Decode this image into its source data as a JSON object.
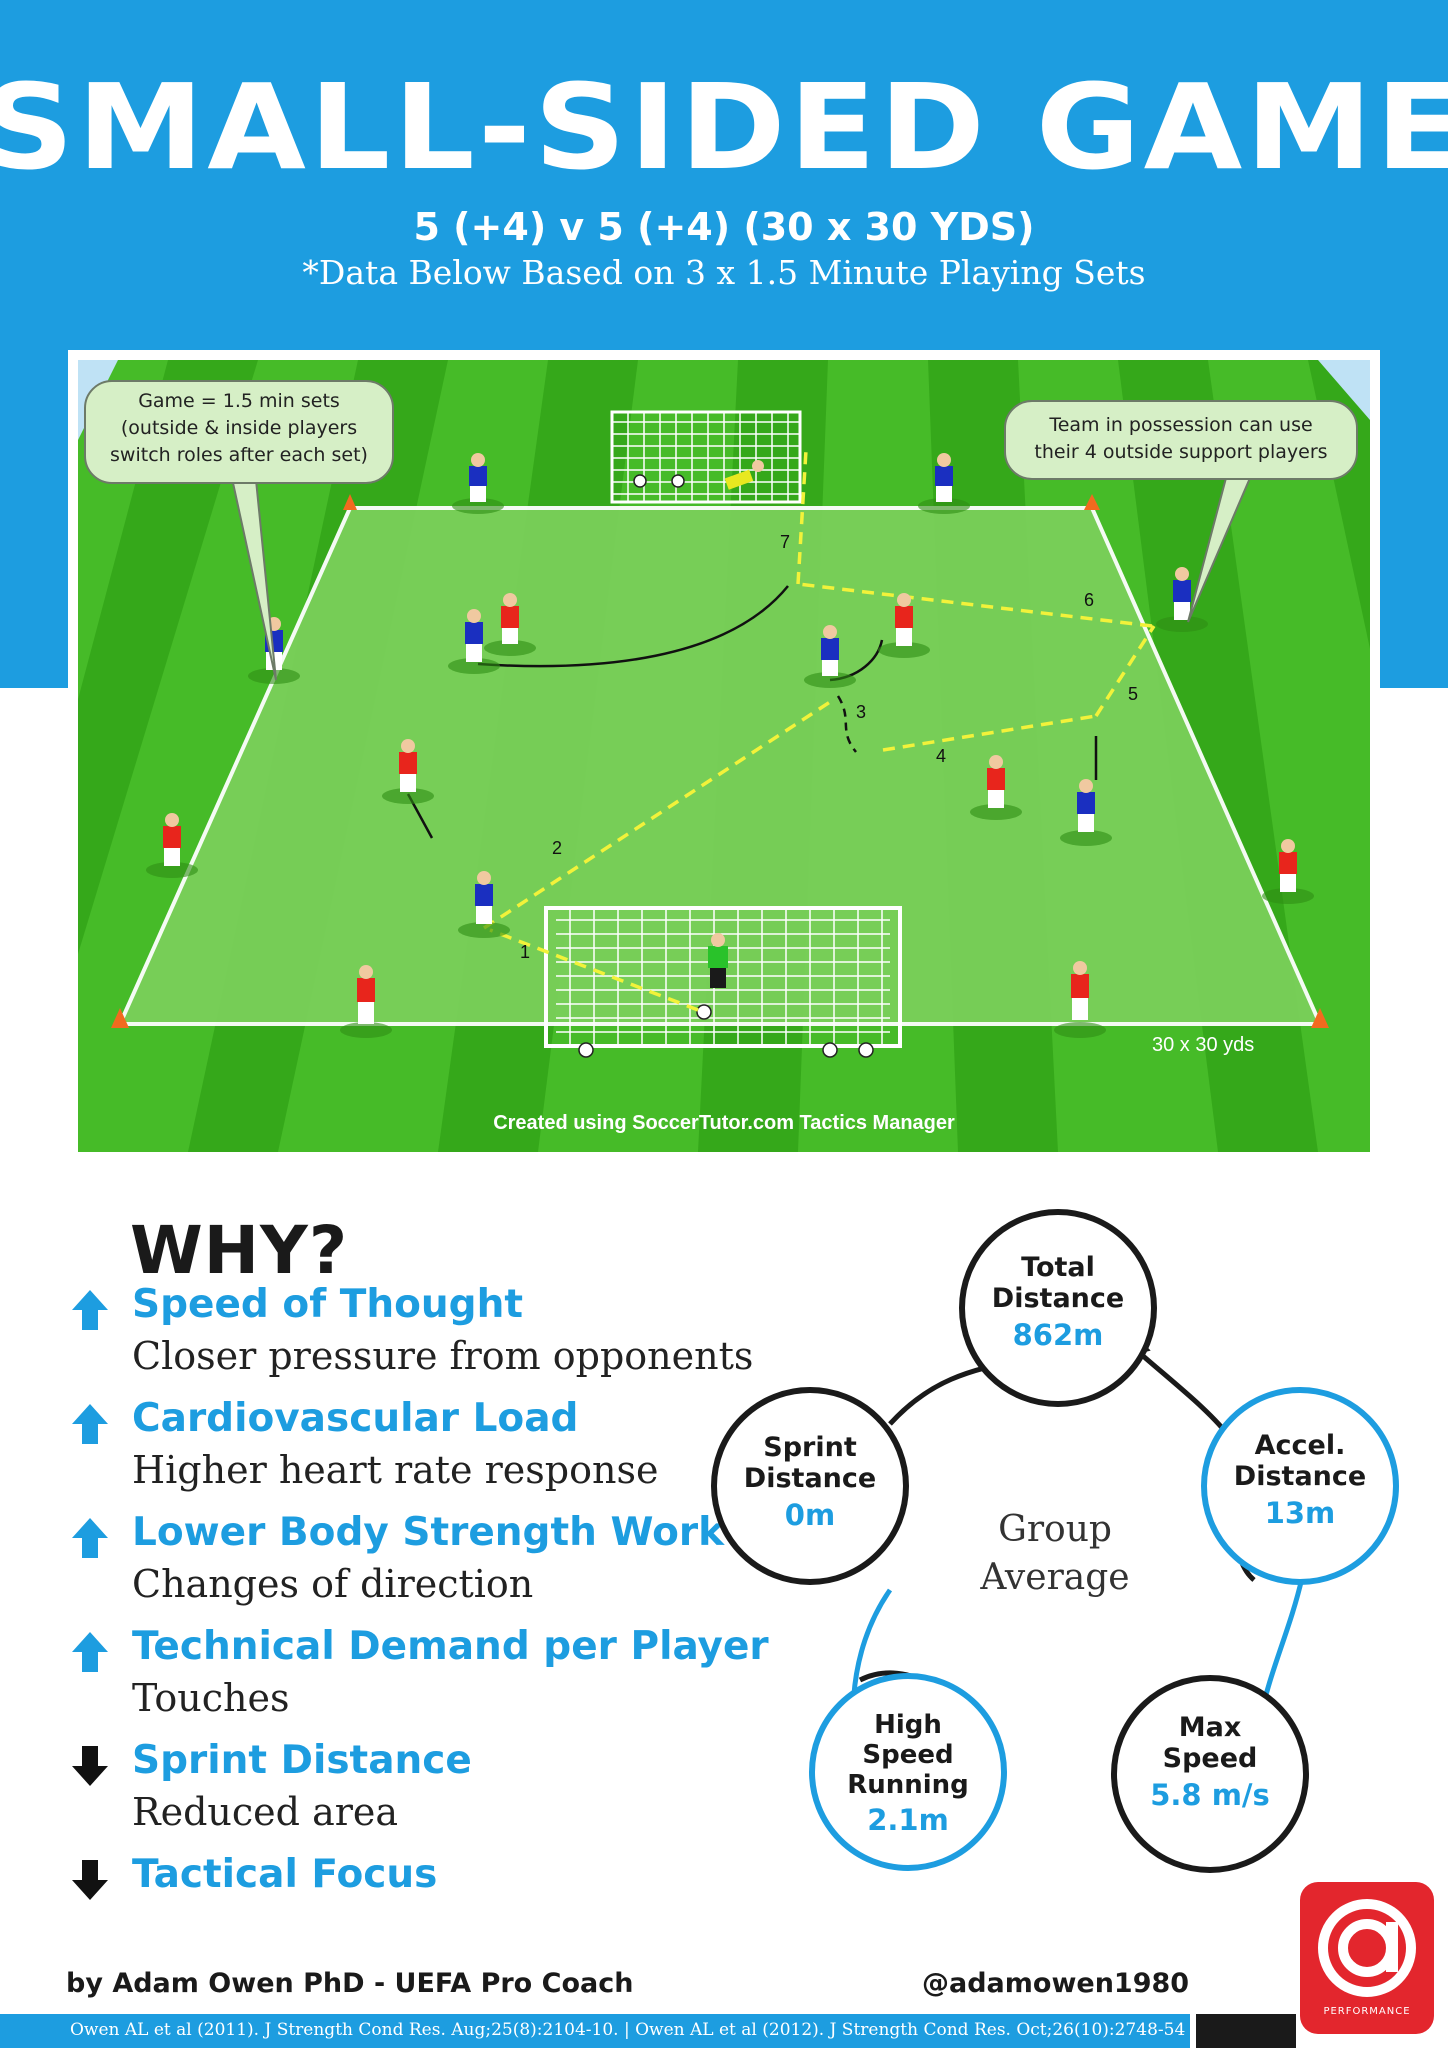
{
  "header": {
    "title": "SMALL-SIDED GAME",
    "subtitle": "5 (+4) v 5 (+4)  (30 x 30 YDS)",
    "note": "*Data Below Based on 3 x 1.5 Minute Playing Sets"
  },
  "pitch": {
    "callout_left": [
      "Game = 1.5 min sets",
      "(outside & inside players",
      "switch roles after each set)"
    ],
    "callout_right": [
      "Team in possession can use",
      "their 4 outside support players"
    ],
    "pass_numbers": [
      "1",
      "2",
      "3",
      "4",
      "5",
      "6",
      "7"
    ],
    "size_label": "30 x 30 yds",
    "credit": "Created using SoccerTutor.com Tactics Manager"
  },
  "why": {
    "title": "WHY?",
    "items": [
      {
        "direction": "up",
        "icon": "arrow-up-icon",
        "heading": "Speed of Thought",
        "detail": "Closer pressure from opponents"
      },
      {
        "direction": "up",
        "icon": "arrow-up-icon",
        "heading": "Cardiovascular Load",
        "detail": "Higher heart rate response"
      },
      {
        "direction": "up",
        "icon": "arrow-up-icon",
        "heading": "Lower Body Strength Work",
        "detail": "Changes of direction"
      },
      {
        "direction": "up",
        "icon": "arrow-up-icon",
        "heading": "Technical Demand per Player",
        "detail": "Touches"
      },
      {
        "direction": "down",
        "icon": "arrow-down-icon",
        "heading": "Sprint Distance",
        "detail": "Reduced area"
      },
      {
        "direction": "down",
        "icon": "arrow-down-icon",
        "heading": "Tactical Focus",
        "detail": ""
      }
    ]
  },
  "cycle": {
    "center": [
      "Group",
      "Average"
    ],
    "nodes": [
      {
        "label": [
          "Total",
          "Distance"
        ],
        "value": "862m"
      },
      {
        "label": [
          "Accel.",
          "Distance"
        ],
        "value": "13m"
      },
      {
        "label": [
          "Max",
          "Speed"
        ],
        "value": "5.8 m/s"
      },
      {
        "label": [
          "High",
          "Speed",
          "Running"
        ],
        "value": "2.1m"
      },
      {
        "label": [
          "Sprint",
          "Distance"
        ],
        "value": "0m"
      }
    ]
  },
  "footer": {
    "author": "by Adam Owen PhD - UEFA Pro Coach",
    "handle": "@adamowen1980",
    "citation": "Owen AL et al (2011). J Strength Cond Res. Aug;25(8):2104-10. | Owen AL et al (2012). J Strength Cond Res. Oct;26(10):2748-54",
    "logo_text": "PERFORMANCE"
  },
  "colors": {
    "brand_blue": "#1d9de0",
    "dark": "#1a1a1a",
    "logo_red": "#e3262d",
    "pitch_green": "#3cae1e",
    "pitch_area": "#76cf55",
    "pass_yellow": "#f2f23a",
    "team_blue": "#1a2fc0",
    "team_red": "#e8251c"
  }
}
